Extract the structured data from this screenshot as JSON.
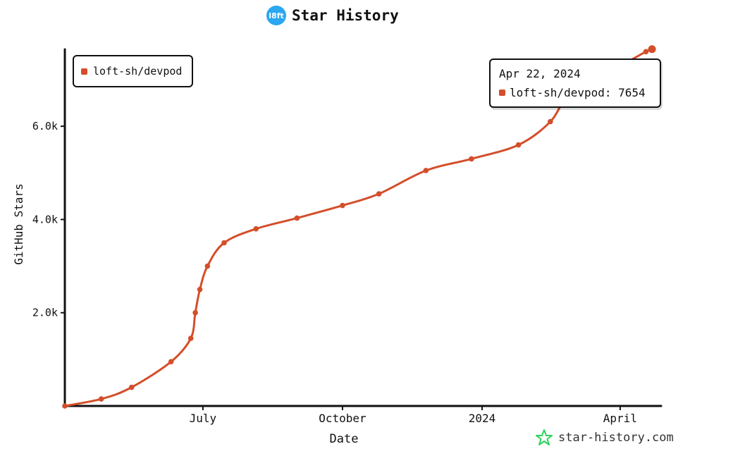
{
  "header": {
    "logo_text": "l8ft",
    "title": "Star History"
  },
  "legend": {
    "label": "loft-sh/devpod",
    "color": "#d44e2a"
  },
  "tooltip": {
    "date": "Apr 22, 2024",
    "label": "loft-sh/devpod: 7654"
  },
  "watermark": {
    "text": "star-history.com",
    "icon": "star-logo-icon",
    "color": "#2bd45c"
  },
  "chart_data": {
    "type": "line",
    "xlabel": "Date",
    "ylabel": "GitHub Stars",
    "x_tick_labels": [
      "July",
      "October",
      "2024",
      "April"
    ],
    "x_ticks": [
      "2023-07-01",
      "2023-10-01",
      "2024-01-01",
      "2024-04-01"
    ],
    "y_tick_labels": [
      "2.0k",
      "4.0k",
      "6.0k"
    ],
    "y_ticks": [
      2000,
      4000,
      6000
    ],
    "xlim": [
      "2023-04-01",
      "2024-04-28"
    ],
    "ylim": [
      0,
      7650
    ],
    "grid": false,
    "legend_position": "top-left",
    "series": [
      {
        "name": "loft-sh/devpod",
        "color": "#d44e2a",
        "points": [
          [
            "2023-04-01",
            0
          ],
          [
            "2023-04-25",
            150
          ],
          [
            "2023-05-15",
            400
          ],
          [
            "2023-06-10",
            950
          ],
          [
            "2023-06-23",
            1450
          ],
          [
            "2023-06-26",
            2000
          ],
          [
            "2023-06-29",
            2500
          ],
          [
            "2023-07-04",
            3000
          ],
          [
            "2023-07-15",
            3500
          ],
          [
            "2023-08-05",
            3800
          ],
          [
            "2023-09-01",
            4030
          ],
          [
            "2023-10-01",
            4300
          ],
          [
            "2023-10-25",
            4550
          ],
          [
            "2023-11-25",
            5050
          ],
          [
            "2023-12-25",
            5300
          ],
          [
            "2024-01-25",
            5600
          ],
          [
            "2024-02-15",
            6100
          ],
          [
            "2024-03-01",
            6800
          ],
          [
            "2024-04-01",
            7300
          ],
          [
            "2024-04-18",
            7600
          ],
          [
            "2024-04-22",
            7654
          ]
        ]
      }
    ]
  }
}
